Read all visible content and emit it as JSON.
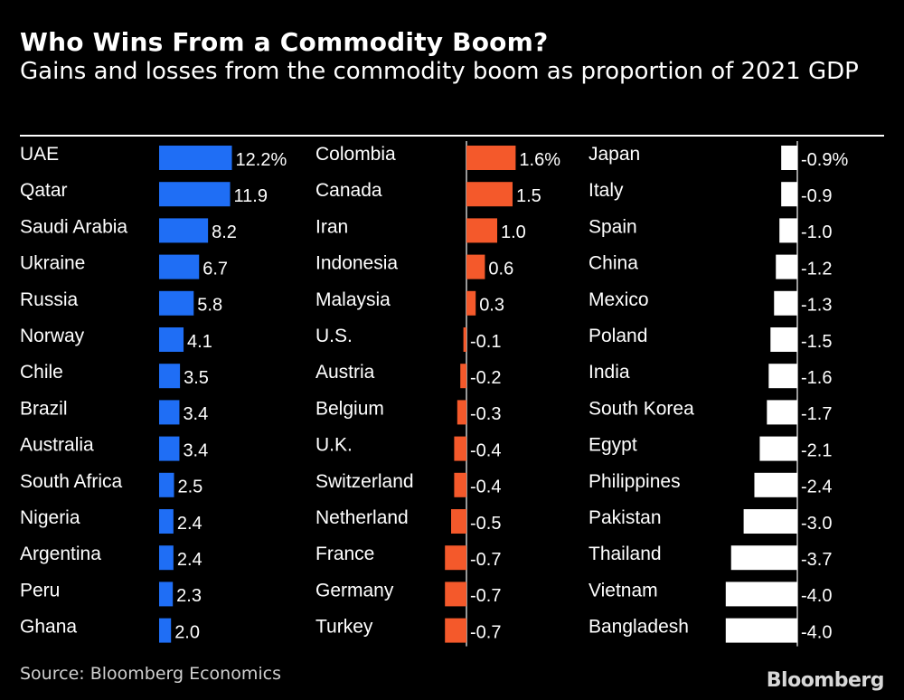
{
  "title": "Who Wins From a Commodity Boom?",
  "subtitle": "Gains and losses from the commodity boom as proportion of 2021 GDP",
  "source": "Source: Bloomberg Economics",
  "logo": "Bloomberg",
  "chart_data": {
    "type": "bar",
    "orientation": "horizontal",
    "title": "Who Wins From a Commodity Boom?",
    "subtitle": "Gains and losses from the commodity boom as proportion of 2021 GDP",
    "unit": "%",
    "panels": [
      {
        "name": "panel-1",
        "color": "#1f6ef5",
        "categories": [
          "UAE",
          "Qatar",
          "Saudi Arabia",
          "Ukraine",
          "Russia",
          "Norway",
          "Chile",
          "Brazil",
          "Australia",
          "South Africa",
          "Nigeria",
          "Argentina",
          "Peru",
          "Ghana"
        ],
        "values": [
          12.2,
          11.9,
          8.2,
          6.7,
          5.8,
          4.1,
          3.5,
          3.4,
          3.4,
          2.5,
          2.4,
          2.4,
          2.3,
          2.0
        ],
        "labels": [
          "12.2%",
          "11.9",
          "8.2",
          "6.7",
          "5.8",
          "4.1",
          "3.5",
          "3.4",
          "3.4",
          "2.5",
          "2.4",
          "2.4",
          "2.3",
          "2.0"
        ]
      },
      {
        "name": "panel-2",
        "color": "#f4592b",
        "categories": [
          "Colombia",
          "Canada",
          "Iran",
          "Indonesia",
          "Malaysia",
          "U.S.",
          "Austria",
          "Belgium",
          "U.K.",
          "Switzerland",
          "Netherland",
          "France",
          "Germany",
          "Turkey"
        ],
        "values": [
          1.6,
          1.5,
          1.0,
          0.6,
          0.3,
          -0.1,
          -0.2,
          -0.3,
          -0.4,
          -0.4,
          -0.5,
          -0.7,
          -0.7,
          -0.7
        ],
        "labels": [
          "1.6%",
          "1.5",
          "1.0",
          "0.6",
          "0.3",
          "-0.1",
          "-0.2",
          "-0.3",
          "-0.4",
          "-0.4",
          "-0.5",
          "-0.7",
          "-0.7",
          "-0.7"
        ]
      },
      {
        "name": "panel-3",
        "color": "#ffffff",
        "categories": [
          "Japan",
          "Italy",
          "Spain",
          "China",
          "Mexico",
          "Poland",
          "India",
          "South Korea",
          "Egypt",
          "Philippines",
          "Pakistan",
          "Thailand",
          "Vietnam",
          "Bangladesh"
        ],
        "values": [
          -0.9,
          -0.9,
          -1.0,
          -1.2,
          -1.3,
          -1.5,
          -1.6,
          -1.7,
          -2.1,
          -2.4,
          -3.0,
          -3.7,
          -4.0,
          -4.0
        ],
        "labels": [
          "-0.9%",
          "-0.9",
          "-1.0",
          "-1.2",
          "-1.3",
          "-1.5",
          "-1.6",
          "-1.7",
          "-2.1",
          "-2.4",
          "-3.0",
          "-3.7",
          "-4.0",
          "-4.0"
        ]
      }
    ]
  }
}
